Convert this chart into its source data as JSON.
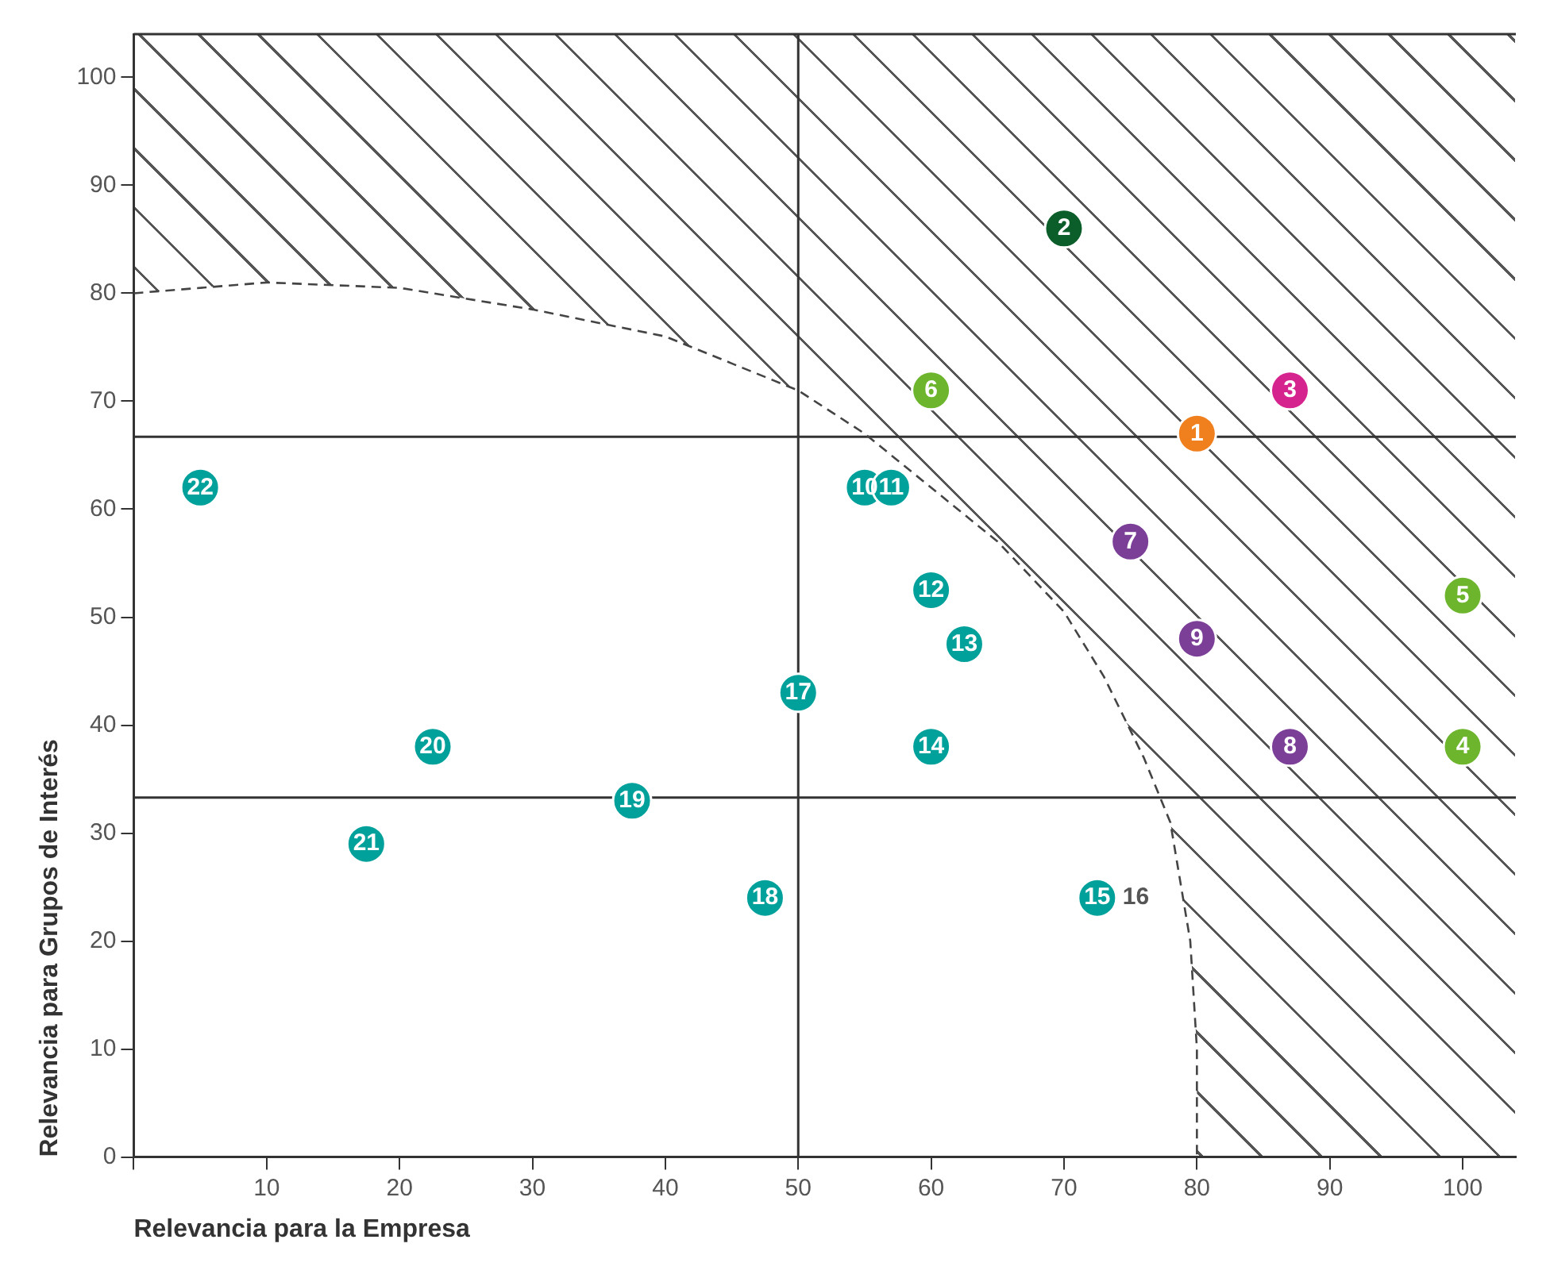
{
  "chart_data": {
    "type": "scatter",
    "xlabel": "Relevancia para la Empresa",
    "ylabel": "Relevancia para Grupos de Interés",
    "series": [
      {
        "marker": "circle",
        "x": [
          80,
          70,
          87,
          100,
          100,
          60,
          75,
          87,
          80,
          55,
          57,
          60,
          62.5,
          60,
          72.5,
          50,
          47.5,
          37.5,
          22.5,
          17.5,
          5
        ],
        "values": [
          67,
          86,
          71,
          38,
          52,
          71,
          57,
          38,
          48,
          62,
          62,
          52.5,
          47.5,
          38,
          24,
          43,
          24,
          33,
          38,
          29,
          62
        ],
        "colors": [
          "#f07f1e",
          "#0b5e2a",
          "#d6248f",
          "#6cb52d",
          "#6cb52d",
          "#6cb52d",
          "#7b3f98",
          "#7b3f98",
          "#7b3f98",
          "#00a19a",
          "#00a19a",
          "#00a19a",
          "#00a19a",
          "#00a19a",
          "#00a19a",
          "#00a19a",
          "#00a19a",
          "#00a19a",
          "#00a19a",
          "#00a19a",
          "#00a19a"
        ]
      },
      {
        "type": "line",
        "marker": "none",
        "line_style": "dashed",
        "color": "#444444",
        "x": [
          0,
          10,
          20,
          30,
          40,
          45,
          50,
          55,
          60,
          65,
          70,
          73,
          76,
          78,
          79.5,
          80,
          80
        ],
        "values": [
          80,
          81,
          80.5,
          78.5,
          76,
          73.5,
          71,
          67,
          62,
          57,
          50.5,
          44.5,
          37,
          31,
          20,
          10,
          0
        ]
      }
    ],
    "annotations": [
      {
        "text": "1",
        "x": 80,
        "y": 67
      },
      {
        "text": "2",
        "x": 70,
        "y": 86
      },
      {
        "text": "3",
        "x": 87,
        "y": 71
      },
      {
        "text": "4",
        "x": 100,
        "y": 38
      },
      {
        "text": "5",
        "x": 100,
        "y": 52
      },
      {
        "text": "6",
        "x": 60,
        "y": 71
      },
      {
        "text": "7",
        "x": 75,
        "y": 57
      },
      {
        "text": "8",
        "x": 87,
        "y": 38
      },
      {
        "text": "9",
        "x": 80,
        "y": 48
      },
      {
        "text": "10",
        "x": 55,
        "y": 62
      },
      {
        "text": "11",
        "x": 57,
        "y": 62
      },
      {
        "text": "12",
        "x": 60,
        "y": 52.5
      },
      {
        "text": "13",
        "x": 62.5,
        "y": 47.5
      },
      {
        "text": "14",
        "x": 60,
        "y": 38
      },
      {
        "text": "15",
        "x": 72.5,
        "y": 24
      },
      {
        "text": "16",
        "x": 72.5,
        "y": 24
      },
      {
        "text": "17",
        "x": 50,
        "y": 43
      },
      {
        "text": "18",
        "x": 47.5,
        "y": 24
      },
      {
        "text": "19",
        "x": 37.5,
        "y": 33
      },
      {
        "text": "20",
        "x": 22.5,
        "y": 38
      },
      {
        "text": "21",
        "x": 17.5,
        "y": 29
      },
      {
        "text": "22",
        "x": 5,
        "y": 62
      }
    ],
    "xlim": [
      0,
      104
    ],
    "ylim": [
      0,
      104
    ],
    "xticks": [
      {
        "value": 0,
        "label": null
      },
      10,
      20,
      30,
      40,
      50,
      60,
      70,
      80,
      90,
      100
    ],
    "yticks": [
      0,
      10,
      20,
      30,
      40,
      50,
      60,
      70,
      80,
      90,
      100
    ],
    "ref_lines": [
      {
        "axis": "x",
        "value": 50,
        "color": "#333333"
      },
      {
        "axis": "y",
        "value": 66.7,
        "color": "#333333"
      },
      {
        "axis": "y",
        "value": 33.3,
        "color": "#333333"
      }
    ],
    "grid": false,
    "legend": false
  }
}
